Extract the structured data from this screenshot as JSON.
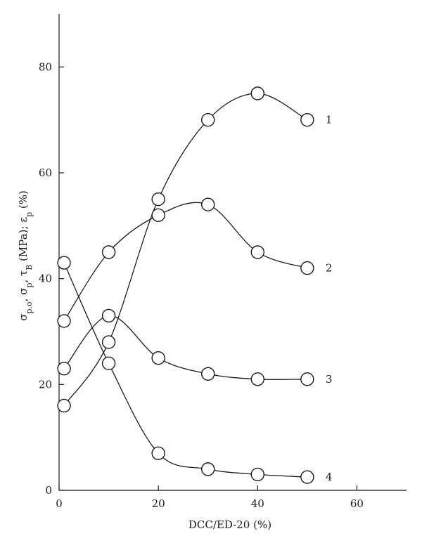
{
  "chart_data": {
    "type": "line",
    "xlabel": "DCC/ED-20 (%)",
    "ylabel_parts": [
      "σ",
      "p.o",
      ", σ",
      "p",
      ", τ",
      "B",
      " (MPa); ε",
      "p",
      " (%)"
    ],
    "xlim": [
      0,
      70
    ],
    "ylim": [
      0,
      90
    ],
    "xticks": [
      0,
      20,
      40,
      60
    ],
    "yticks": [
      0,
      20,
      40,
      60,
      80
    ],
    "grid": false,
    "series": [
      {
        "name": "1",
        "x": [
          1,
          10,
          20,
          30,
          40,
          50
        ],
        "y": [
          16,
          28,
          55,
          70,
          75,
          70
        ]
      },
      {
        "name": "2",
        "x": [
          1,
          10,
          20,
          30,
          40,
          50
        ],
        "y": [
          32,
          45,
          52,
          54,
          45,
          42
        ]
      },
      {
        "name": "3",
        "x": [
          1,
          10,
          20,
          30,
          40,
          50
        ],
        "y": [
          23,
          33,
          25,
          22,
          21,
          21
        ]
      },
      {
        "name": "4",
        "x": [
          1,
          10,
          20,
          30,
          40,
          50
        ],
        "y": [
          43,
          24,
          7,
          4,
          3,
          2.5
        ]
      }
    ]
  }
}
